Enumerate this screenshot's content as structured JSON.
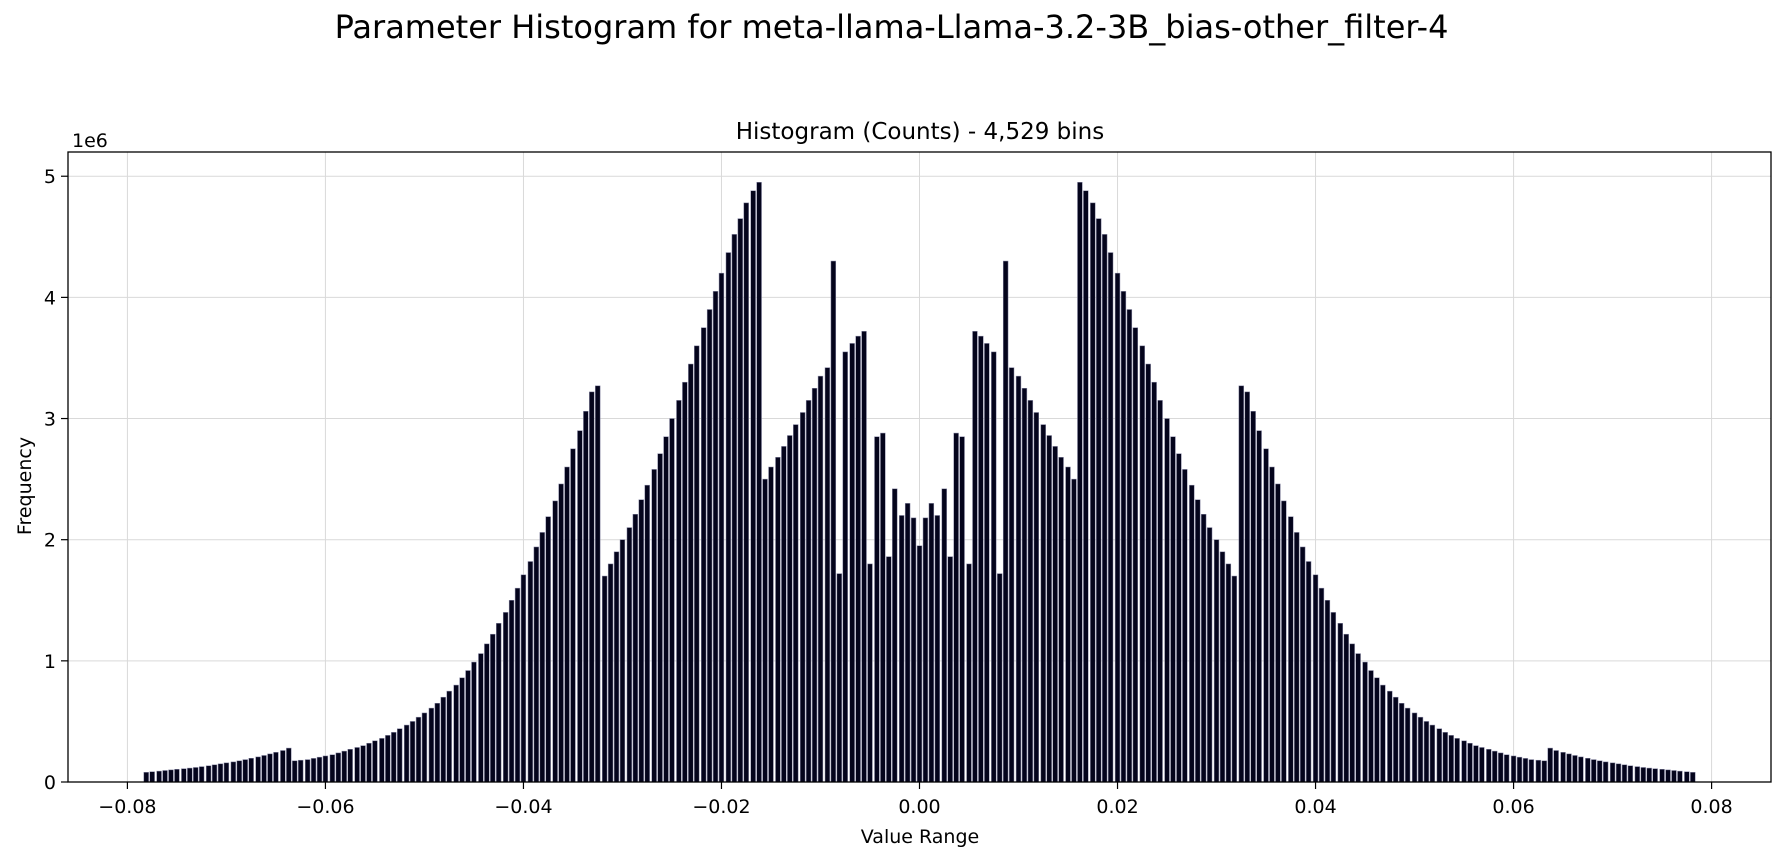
{
  "figure_title": "Parameter Histogram for meta-llama-Llama-3.2-3B_bias-other_filter-4",
  "colors": {
    "bar_fill": "#04041c",
    "bar_edge": "#8a8aa6",
    "grid": "#d9d9d9",
    "axes": "#000000"
  },
  "chart_data": {
    "type": "bar",
    "title": "Histogram (Counts) - 4,529 bins",
    "xlabel": "Value Range",
    "ylabel": "Frequency",
    "y_offset_label": "1e6",
    "xlim": [
      -0.086,
      0.086
    ],
    "ylim": [
      0,
      5.2
    ],
    "x_ticks": [
      -0.08,
      -0.06,
      -0.04,
      -0.02,
      0.0,
      0.02,
      0.04,
      0.06,
      0.08
    ],
    "x_tick_labels": [
      "−0.08",
      "−0.06",
      "−0.04",
      "−0.02",
      "0.00",
      "0.02",
      "0.04",
      "0.06",
      "0.08"
    ],
    "y_ticks": [
      0,
      1,
      2,
      3,
      4,
      5
    ],
    "y_tick_labels": [
      "0",
      "1",
      "2",
      "3",
      "4",
      "5"
    ],
    "grid": true,
    "y_unit": "1e6",
    "x": [
      -0.0781,
      -0.0775,
      -0.0768,
      -0.0762,
      -0.0756,
      -0.075,
      -0.0743,
      -0.0737,
      -0.0731,
      -0.0725,
      -0.0718,
      -0.0712,
      -0.0706,
      -0.07,
      -0.0693,
      -0.0687,
      -0.0681,
      -0.0675,
      -0.0668,
      -0.0662,
      -0.0656,
      -0.065,
      -0.0643,
      -0.0637,
      -0.0631,
      -0.0625,
      -0.0618,
      -0.0612,
      -0.0606,
      -0.06,
      -0.0593,
      -0.0587,
      -0.0581,
      -0.0575,
      -0.0568,
      -0.0562,
      -0.0556,
      -0.055,
      -0.0543,
      -0.0537,
      -0.0531,
      -0.0525,
      -0.0518,
      -0.0512,
      -0.0506,
      -0.05,
      -0.0493,
      -0.0487,
      -0.0481,
      -0.0475,
      -0.0468,
      -0.0462,
      -0.0456,
      -0.045,
      -0.0443,
      -0.0437,
      -0.0431,
      -0.0425,
      -0.0418,
      -0.0412,
      -0.0406,
      -0.04,
      -0.0393,
      -0.0387,
      -0.0381,
      -0.0375,
      -0.0368,
      -0.0362,
      -0.0356,
      -0.035,
      -0.0343,
      -0.0337,
      -0.0331,
      -0.0325,
      -0.0318,
      -0.0312,
      -0.0306,
      -0.03,
      -0.0293,
      -0.0287,
      -0.0281,
      -0.0275,
      -0.0268,
      -0.0262,
      -0.0256,
      -0.025,
      -0.0243,
      -0.0237,
      -0.0231,
      -0.0225,
      -0.0218,
      -0.0212,
      -0.0206,
      -0.02,
      -0.0193,
      -0.0187,
      -0.0181,
      -0.0175,
      -0.0168,
      -0.0162,
      -0.0156,
      -0.015,
      -0.0143,
      -0.0137,
      -0.0131,
      -0.0125,
      -0.0118,
      -0.0112,
      -0.0106,
      -0.01,
      -0.0093,
      -0.0087,
      -0.0081,
      -0.0075,
      -0.0068,
      -0.0062,
      -0.0056,
      -0.005,
      -0.0043,
      -0.0037,
      -0.0031,
      -0.0025,
      -0.0018,
      -0.0012,
      -0.0006,
      0.0,
      0.0006,
      0.0012,
      0.0018,
      0.0025,
      0.0031,
      0.0037,
      0.0043,
      0.005,
      0.0056,
      0.0062,
      0.0068,
      0.0075,
      0.0081,
      0.0087,
      0.0093,
      0.01,
      0.0106,
      0.0112,
      0.0118,
      0.0125,
      0.0131,
      0.0137,
      0.0143,
      0.015,
      0.0156,
      0.0162,
      0.0168,
      0.0175,
      0.0181,
      0.0187,
      0.0193,
      0.02,
      0.0206,
      0.0212,
      0.0218,
      0.0225,
      0.0231,
      0.0237,
      0.0243,
      0.025,
      0.0256,
      0.0262,
      0.0268,
      0.0275,
      0.0281,
      0.0287,
      0.0293,
      0.03,
      0.0306,
      0.0312,
      0.0318,
      0.0325,
      0.0331,
      0.0337,
      0.0343,
      0.035,
      0.0356,
      0.0362,
      0.0368,
      0.0375,
      0.0381,
      0.0387,
      0.0393,
      0.04,
      0.0406,
      0.0412,
      0.0418,
      0.0425,
      0.0431,
      0.0437,
      0.0443,
      0.045,
      0.0456,
      0.0462,
      0.0468,
      0.0475,
      0.0481,
      0.0487,
      0.0493,
      0.05,
      0.0506,
      0.0512,
      0.0518,
      0.0525,
      0.0531,
      0.0537,
      0.0543,
      0.055,
      0.0556,
      0.0562,
      0.0568,
      0.0575,
      0.0581,
      0.0587,
      0.0593,
      0.06,
      0.0606,
      0.0612,
      0.0618,
      0.0625,
      0.0631,
      0.0637,
      0.0643,
      0.065,
      0.0656,
      0.0662,
      0.0668,
      0.0675,
      0.0681,
      0.0687,
      0.0693,
      0.07,
      0.0706,
      0.0712,
      0.0718,
      0.0725,
      0.0731,
      0.0737,
      0.0743,
      0.075,
      0.0756,
      0.0762,
      0.0768,
      0.0775,
      0.0781
    ],
    "values": [
      0.08,
      0.085,
      0.09,
      0.095,
      0.1,
      0.105,
      0.11,
      0.115,
      0.12,
      0.127,
      0.134,
      0.142,
      0.15,
      0.158,
      0.166,
      0.175,
      0.185,
      0.196,
      0.207,
      0.219,
      0.232,
      0.245,
      0.26,
      0.28,
      0.175,
      0.18,
      0.185,
      0.195,
      0.205,
      0.215,
      0.225,
      0.24,
      0.255,
      0.27,
      0.285,
      0.3,
      0.32,
      0.34,
      0.36,
      0.385,
      0.41,
      0.44,
      0.47,
      0.5,
      0.535,
      0.57,
      0.61,
      0.65,
      0.7,
      0.75,
      0.8,
      0.86,
      0.92,
      0.99,
      1.06,
      1.14,
      1.22,
      1.31,
      1.4,
      1.5,
      1.6,
      1.71,
      1.82,
      1.94,
      2.06,
      2.19,
      2.32,
      2.46,
      2.6,
      2.75,
      2.9,
      3.06,
      3.22,
      3.27,
      1.7,
      1.8,
      1.9,
      2.0,
      2.1,
      2.21,
      2.33,
      2.45,
      2.58,
      2.71,
      2.85,
      3.0,
      3.15,
      3.3,
      3.45,
      3.6,
      3.75,
      3.9,
      4.05,
      4.2,
      4.37,
      4.52,
      4.65,
      4.78,
      4.88,
      4.95,
      2.5,
      2.6,
      2.68,
      2.77,
      2.86,
      2.95,
      3.05,
      3.15,
      3.25,
      3.35,
      3.42,
      4.3,
      1.72,
      3.55,
      3.62,
      3.68,
      3.72,
      1.8,
      2.85,
      2.88,
      1.86,
      2.42,
      2.2,
      2.3,
      2.18,
      1.95,
      2.18,
      2.3,
      2.2,
      2.42,
      1.86,
      2.88,
      2.85,
      1.8,
      3.72,
      3.68,
      3.62,
      3.55,
      1.72,
      4.3,
      3.42,
      3.35,
      3.25,
      3.15,
      3.05,
      2.95,
      2.86,
      2.77,
      2.68,
      2.6,
      2.5,
      4.95,
      4.88,
      4.78,
      4.65,
      4.52,
      4.37,
      4.2,
      4.05,
      3.9,
      3.75,
      3.6,
      3.45,
      3.3,
      3.15,
      3.0,
      2.85,
      2.71,
      2.58,
      2.45,
      2.33,
      2.21,
      2.1,
      2.0,
      1.9,
      1.8,
      1.7,
      3.27,
      3.22,
      3.06,
      2.9,
      2.75,
      2.6,
      2.46,
      2.32,
      2.19,
      2.06,
      1.94,
      1.82,
      1.71,
      1.6,
      1.5,
      1.4,
      1.31,
      1.22,
      1.14,
      1.06,
      0.99,
      0.92,
      0.86,
      0.8,
      0.75,
      0.7,
      0.65,
      0.61,
      0.57,
      0.535,
      0.5,
      0.47,
      0.44,
      0.41,
      0.385,
      0.36,
      0.34,
      0.32,
      0.3,
      0.285,
      0.27,
      0.255,
      0.24,
      0.225,
      0.215,
      0.205,
      0.195,
      0.185,
      0.18,
      0.175,
      0.28,
      0.26,
      0.245,
      0.232,
      0.219,
      0.207,
      0.196,
      0.185,
      0.175,
      0.166,
      0.158,
      0.15,
      0.142,
      0.134,
      0.127,
      0.12,
      0.115,
      0.11,
      0.105,
      0.1,
      0.095,
      0.09,
      0.085,
      0.08
    ]
  }
}
